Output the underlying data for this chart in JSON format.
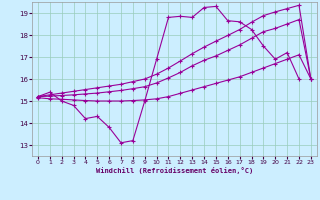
{
  "xlabel": "Windchill (Refroidissement éolien,°C)",
  "x_ticks": [
    0,
    1,
    2,
    3,
    4,
    5,
    6,
    7,
    8,
    9,
    10,
    11,
    12,
    13,
    14,
    15,
    16,
    17,
    18,
    19,
    20,
    21,
    22,
    23
  ],
  "ylim": [
    12.5,
    19.5
  ],
  "xlim": [
    -0.5,
    23.5
  ],
  "yticks": [
    13,
    14,
    15,
    16,
    17,
    18,
    19
  ],
  "background_color": "#cceeff",
  "grid_color": "#99ccbb",
  "line_color": "#990099",
  "lines": [
    {
      "x": [
        0,
        1,
        2,
        3,
        4,
        5,
        6,
        7,
        8,
        9,
        10,
        11,
        12,
        13,
        14,
        15,
        16,
        17,
        18,
        19,
        20,
        21,
        22
      ],
      "y": [
        15.2,
        15.4,
        15.0,
        14.8,
        14.2,
        14.3,
        13.8,
        13.1,
        13.2,
        15.0,
        16.9,
        18.8,
        18.85,
        18.8,
        19.25,
        19.3,
        18.65,
        18.6,
        18.25,
        17.5,
        16.9,
        17.2,
        16.0
      ]
    },
    {
      "x": [
        0,
        1,
        2,
        3,
        4,
        5,
        6,
        7,
        8,
        9,
        10,
        11,
        12,
        13,
        14,
        15,
        16,
        17,
        18,
        19,
        20,
        21,
        22,
        23
      ],
      "y": [
        15.15,
        15.1,
        15.08,
        15.05,
        15.02,
        15.0,
        15.0,
        15.0,
        15.02,
        15.05,
        15.1,
        15.2,
        15.35,
        15.5,
        15.65,
        15.8,
        15.95,
        16.1,
        16.3,
        16.5,
        16.7,
        16.9,
        17.1,
        16.0
      ]
    },
    {
      "x": [
        0,
        1,
        2,
        3,
        4,
        5,
        6,
        7,
        8,
        9,
        10,
        11,
        12,
        13,
        14,
        15,
        16,
        17,
        18,
        19,
        20,
        21,
        22,
        23
      ],
      "y": [
        15.2,
        15.22,
        15.25,
        15.28,
        15.32,
        15.36,
        15.42,
        15.48,
        15.56,
        15.65,
        15.82,
        16.05,
        16.3,
        16.6,
        16.85,
        17.05,
        17.3,
        17.55,
        17.85,
        18.15,
        18.3,
        18.5,
        18.7,
        16.0
      ]
    },
    {
      "x": [
        0,
        1,
        2,
        3,
        4,
        5,
        6,
        7,
        8,
        9,
        10,
        11,
        12,
        13,
        14,
        15,
        16,
        17,
        18,
        19,
        20,
        21,
        22,
        23
      ],
      "y": [
        15.2,
        15.28,
        15.36,
        15.44,
        15.52,
        15.6,
        15.68,
        15.76,
        15.88,
        16.0,
        16.22,
        16.5,
        16.82,
        17.15,
        17.45,
        17.72,
        17.98,
        18.25,
        18.58,
        18.88,
        19.05,
        19.2,
        19.35,
        16.0
      ]
    }
  ]
}
